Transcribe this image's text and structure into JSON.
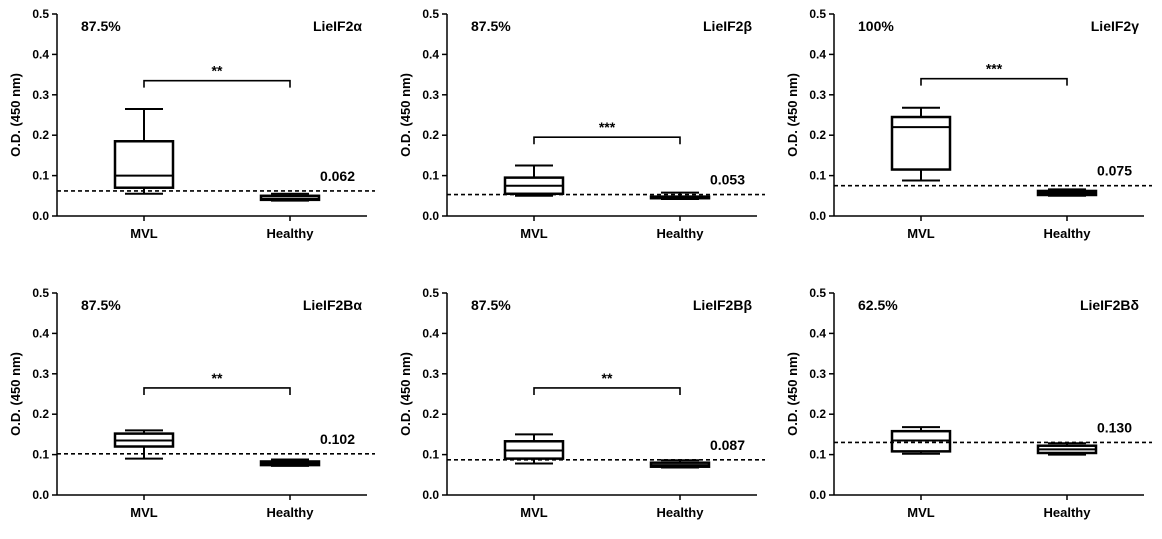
{
  "chart_data": [
    {
      "type": "box",
      "title": "LieIF2α",
      "percent": "87.5%",
      "ylabel": "O.D. (450 nm)",
      "ylim": [
        0,
        0.5
      ],
      "yticks": [
        "0.0",
        "0.1",
        "0.2",
        "0.3",
        "0.4",
        "0.5"
      ],
      "categories": [
        "MVL",
        "Healthy"
      ],
      "boxes": [
        {
          "min": 0.055,
          "q1": 0.07,
          "median": 0.1,
          "q3": 0.185,
          "max": 0.265
        },
        {
          "min": 0.038,
          "q1": 0.04,
          "median": 0.043,
          "q3": 0.05,
          "max": 0.055
        }
      ],
      "cutoff": 0.062,
      "cutoff_label": "0.062",
      "significance": "**",
      "sig_y": 0.335
    },
    {
      "type": "box",
      "title": "LieIF2β",
      "percent": "87.5%",
      "ylabel": "O.D. (450 nm)",
      "ylim": [
        0,
        0.5
      ],
      "yticks": [
        "0.0",
        "0.1",
        "0.2",
        "0.3",
        "0.4",
        "0.5"
      ],
      "categories": [
        "MVL",
        "Healthy"
      ],
      "boxes": [
        {
          "min": 0.05,
          "q1": 0.055,
          "median": 0.075,
          "q3": 0.095,
          "max": 0.125
        },
        {
          "min": 0.042,
          "q1": 0.044,
          "median": 0.046,
          "q3": 0.048,
          "max": 0.058
        }
      ],
      "cutoff": 0.053,
      "cutoff_label": "0.053",
      "significance": "***",
      "sig_y": 0.195
    },
    {
      "type": "box",
      "title": "LieIF2γ",
      "percent": "100%",
      "ylabel": "O.D. (450 nm)",
      "ylim": [
        0,
        0.5
      ],
      "yticks": [
        "0.0",
        "0.1",
        "0.2",
        "0.3",
        "0.4",
        "0.5"
      ],
      "categories": [
        "MVL",
        "Healthy"
      ],
      "boxes": [
        {
          "min": 0.088,
          "q1": 0.115,
          "median": 0.22,
          "q3": 0.245,
          "max": 0.268
        },
        {
          "min": 0.05,
          "q1": 0.052,
          "median": 0.057,
          "q3": 0.062,
          "max": 0.066
        }
      ],
      "cutoff": 0.075,
      "cutoff_label": "0.075",
      "significance": "***",
      "sig_y": 0.34
    },
    {
      "type": "box",
      "title": "LieIF2Bα",
      "percent": "87.5%",
      "ylabel": "O.D. (450 nm)",
      "ylim": [
        0,
        0.5
      ],
      "yticks": [
        "0.0",
        "0.1",
        "0.2",
        "0.3",
        "0.4",
        "0.5"
      ],
      "categories": [
        "MVL",
        "Healthy"
      ],
      "boxes": [
        {
          "min": 0.09,
          "q1": 0.12,
          "median": 0.135,
          "q3": 0.152,
          "max": 0.16
        },
        {
          "min": 0.072,
          "q1": 0.074,
          "median": 0.078,
          "q3": 0.083,
          "max": 0.088
        }
      ],
      "cutoff": 0.102,
      "cutoff_label": "0.102",
      "significance": "**",
      "sig_y": 0.265
    },
    {
      "type": "box",
      "title": "LieIF2Bβ",
      "percent": "87.5%",
      "ylabel": "O.D. (450 nm)",
      "ylim": [
        0,
        0.5
      ],
      "yticks": [
        "0.0",
        "0.1",
        "0.2",
        "0.3",
        "0.4",
        "0.5"
      ],
      "categories": [
        "MVL",
        "Healthy"
      ],
      "boxes": [
        {
          "min": 0.078,
          "q1": 0.09,
          "median": 0.11,
          "q3": 0.133,
          "max": 0.15
        },
        {
          "min": 0.068,
          "q1": 0.07,
          "median": 0.074,
          "q3": 0.08,
          "max": 0.086
        }
      ],
      "cutoff": 0.087,
      "cutoff_label": "0.087",
      "significance": "**",
      "sig_y": 0.265
    },
    {
      "type": "box",
      "title": "LieIF2Bδ",
      "percent": "62.5%",
      "ylabel": "O.D. (450 nm)",
      "ylim": [
        0,
        0.5
      ],
      "yticks": [
        "0.0",
        "0.1",
        "0.2",
        "0.3",
        "0.4",
        "0.5"
      ],
      "categories": [
        "MVL",
        "Healthy"
      ],
      "boxes": [
        {
          "min": 0.102,
          "q1": 0.108,
          "median": 0.135,
          "q3": 0.158,
          "max": 0.168
        },
        {
          "min": 0.1,
          "q1": 0.104,
          "median": 0.113,
          "q3": 0.122,
          "max": 0.128
        }
      ],
      "cutoff": 0.13,
      "cutoff_label": "0.130",
      "significance": "",
      "sig_y": 0
    }
  ]
}
